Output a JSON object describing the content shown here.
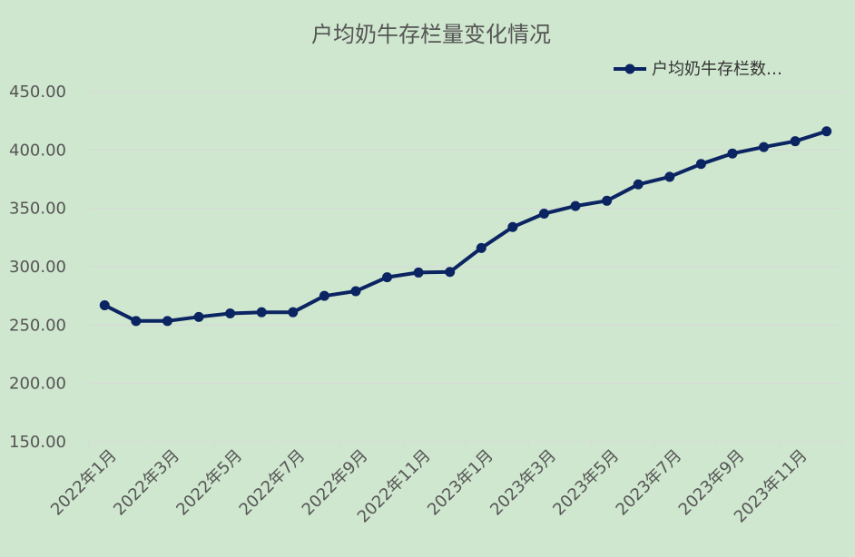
{
  "chart_data": {
    "type": "line",
    "title": "户均奶牛存栏量变化情况",
    "xlabel": "",
    "ylabel": "",
    "ylim": [
      150,
      450
    ],
    "yticks": [
      "450.00",
      "400.00",
      "350.00",
      "300.00",
      "250.00",
      "200.00",
      "150.00"
    ],
    "ytick_values": [
      450,
      400,
      350,
      300,
      250,
      200,
      150
    ],
    "xtick_labels": [
      "2022年1月",
      "2022年3月",
      "2022年5月",
      "2022年7月",
      "2022年9月",
      "2022年11月",
      "2023年1月",
      "2023年3月",
      "2023年5月",
      "2023年7月",
      "2023年9月",
      "2023年11月"
    ],
    "grid": true,
    "legend_position": "top-right",
    "series": [
      {
        "name": "户均奶牛存栏数…",
        "color": "#0b2462",
        "values": [
          267,
          253.5,
          253.5,
          257,
          260,
          261,
          261,
          275,
          279,
          291,
          295,
          295.5,
          316,
          334,
          345.5,
          352,
          356.5,
          370.5,
          377,
          388,
          397,
          402.5,
          407.5,
          416
        ]
      }
    ]
  }
}
